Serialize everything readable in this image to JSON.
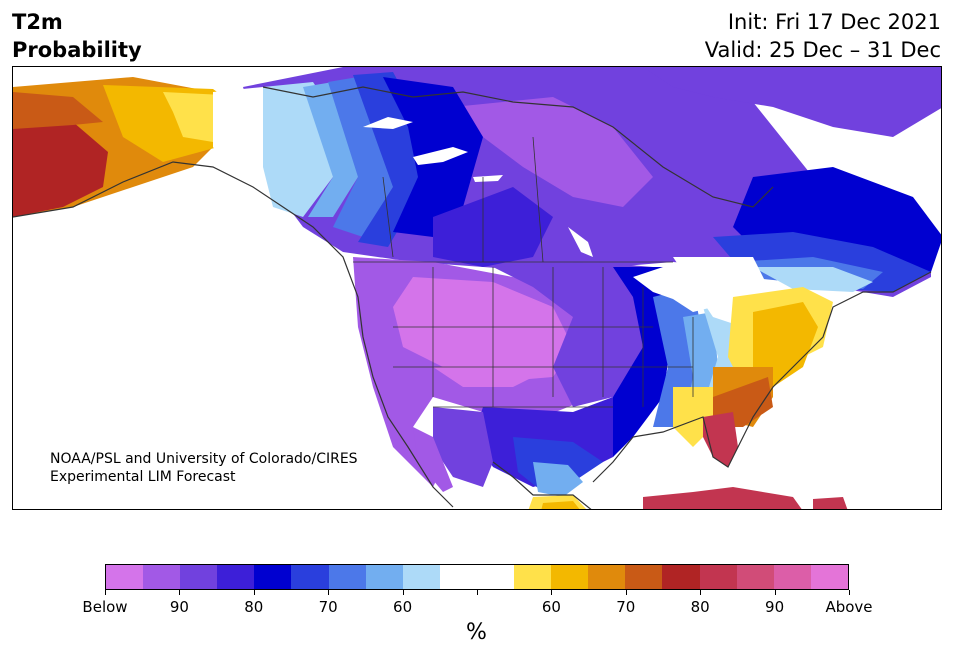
{
  "title": {
    "line1": "T2m",
    "line2": "Probability"
  },
  "subtitle": {
    "init": "Init: Fri 17 Dec 2021",
    "valid": "Valid: 25 Dec – 31 Dec"
  },
  "credit": {
    "line1": "NOAA/PSL and University of Colorado/CIRES",
    "line2": "Experimental LIM Forecast"
  },
  "map": {
    "region": "North America",
    "field": "2m temperature probability (below / above normal)",
    "background_color": "#ffffff",
    "coastline_color": "#333333"
  },
  "legend": {
    "unit": "%",
    "colors": [
      "#d474ea",
      "#a259e6",
      "#7141de",
      "#3d1fd8",
      "#0000d0",
      "#2a3fdd",
      "#4c78e9",
      "#72aef0",
      "#addaf8",
      "#ffffff",
      "#ffffff",
      "#ffe14a",
      "#f3b800",
      "#e08a0c",
      "#c95a16",
      "#b02424",
      "#c23550",
      "#d14c78",
      "#dc5ea8",
      "#e474d8"
    ],
    "tick_labels": [
      {
        "text": "Below",
        "index": 0
      },
      {
        "text": "90",
        "index": 2
      },
      {
        "text": "80",
        "index": 4
      },
      {
        "text": "70",
        "index": 6
      },
      {
        "text": "60",
        "index": 8
      },
      {
        "text": "",
        "index": 10
      },
      {
        "text": "60",
        "index": 12
      },
      {
        "text": "70",
        "index": 14
      },
      {
        "text": "80",
        "index": 16
      },
      {
        "text": "90",
        "index": 18
      },
      {
        "text": "Above",
        "index": 20
      }
    ]
  }
}
